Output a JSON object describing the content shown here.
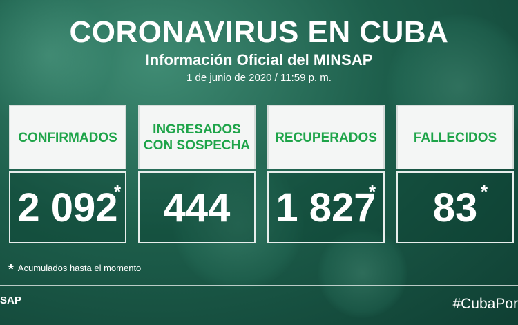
{
  "header": {
    "title": "CORONAVIRUS EN CUBA",
    "subtitle": "Información Oficial del MINSAP",
    "date": "1 de junio de 2020 / 11:59 p. m."
  },
  "cards": [
    {
      "label": "CONFIRMADOS",
      "value": "2 092",
      "asterisk": "*"
    },
    {
      "label": "INGRESADOS\nCON SOSPECHA",
      "value": "444",
      "asterisk": ""
    },
    {
      "label": "RECUPERADOS",
      "value": "1 827",
      "asterisk": "*"
    },
    {
      "label": "FALLECIDOS",
      "value": "83",
      "asterisk": "*"
    }
  ],
  "footnote": {
    "marker": "*",
    "text": "Acumulados hasta el momento"
  },
  "footer": {
    "logo": "SAP",
    "hashtag": "#CubaPor"
  },
  "colors": {
    "accent": "#1ea449",
    "background": "#1d5e4b"
  }
}
